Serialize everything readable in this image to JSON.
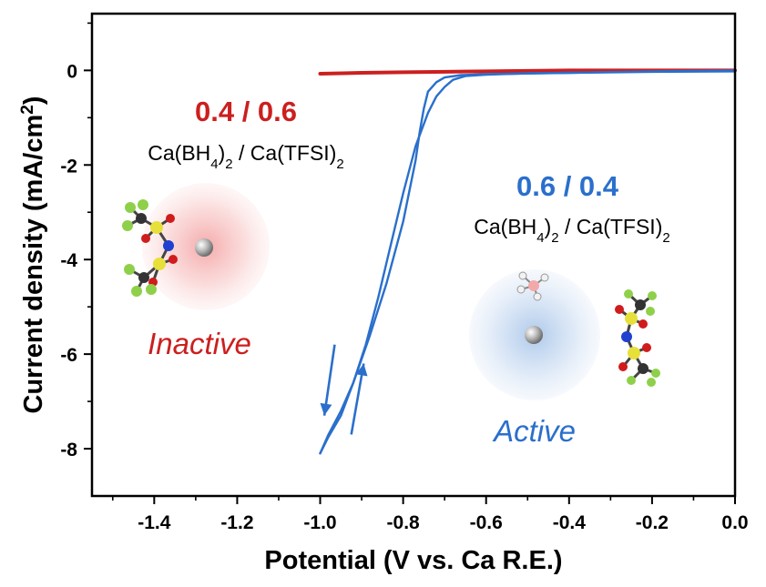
{
  "chart_data": {
    "type": "line",
    "xlabel": "Potential (V vs. Ca R.E.)",
    "ylabel_main": "Current density (mA/cm",
    "ylabel_sup": "2",
    "ylabel_close": ")",
    "xlim": [
      -1.55,
      0.0
    ],
    "ylim": [
      -9.0,
      1.2
    ],
    "xticks": [
      -1.4,
      -1.2,
      -1.0,
      -0.8,
      -0.6,
      -0.4,
      -0.2,
      0.0
    ],
    "xtick_labels": [
      "-1.4",
      "-1.2",
      "-1.0",
      "-0.8",
      "-0.6",
      "-0.4",
      "-0.2",
      "0.0"
    ],
    "yticks": [
      0,
      -2,
      -4,
      -6,
      -8
    ],
    "ytick_labels": [
      "0",
      "-2",
      "-4",
      "-6",
      "-8"
    ],
    "grid": false,
    "colors": {
      "red": "#cc1f1f",
      "blue": "#2a6fcc"
    },
    "series": [
      {
        "color": "#cc1f1f",
        "x": [
          -1.0,
          -0.9,
          -0.8,
          -0.7,
          -0.6,
          -0.5,
          -0.4,
          -0.3,
          -0.2,
          -0.1,
          0.0
        ],
        "y": [
          -0.07,
          -0.05,
          -0.04,
          -0.03,
          -0.02,
          -0.01,
          0.0,
          0.0,
          0.0,
          0.0,
          0.0
        ]
      },
      {
        "color": "#2a6fcc",
        "x": [
          0.0,
          -0.2,
          -0.4,
          -0.6,
          -0.66,
          -0.7,
          -0.72,
          -0.74,
          -0.75,
          -0.76,
          -0.77,
          -0.8,
          -0.84,
          -0.88,
          -0.92,
          -0.95,
          -0.98,
          -1.0
        ],
        "y": [
          0.0,
          -0.02,
          -0.05,
          -0.08,
          -0.1,
          -0.15,
          -0.25,
          -0.45,
          -0.8,
          -1.3,
          -1.9,
          -3.2,
          -4.5,
          -5.6,
          -6.6,
          -7.2,
          -7.7,
          -8.1
        ]
      },
      {
        "color": "#2a6fcc",
        "x": [
          -1.0,
          -0.98,
          -0.95,
          -0.92,
          -0.89,
          -0.86,
          -0.83,
          -0.8,
          -0.77,
          -0.74,
          -0.72,
          -0.7,
          -0.68,
          -0.65,
          -0.6,
          -0.5,
          -0.4,
          -0.2,
          0.0
        ],
        "y": [
          -8.1,
          -7.75,
          -7.3,
          -6.6,
          -5.8,
          -4.8,
          -3.7,
          -2.6,
          -1.6,
          -0.9,
          -0.55,
          -0.35,
          -0.2,
          -0.12,
          -0.09,
          -0.06,
          -0.05,
          -0.03,
          -0.02
        ]
      }
    ],
    "arrows": [
      {
        "from": [
          -0.965,
          -5.8
        ],
        "to": [
          -0.99,
          -7.3
        ],
        "color": "#2a6fcc"
      },
      {
        "from": [
          -0.925,
          -7.7
        ],
        "to": [
          -0.895,
          -6.2
        ],
        "color": "#2a6fcc"
      }
    ],
    "annotations": {
      "inactive_ratio": "0.4 / 0.6",
      "inactive_formula": "Ca(BH4)2 / Ca(TFSI)2",
      "inactive_label": "Inactive",
      "active_ratio": "0.6 / 0.4",
      "active_formula": "Ca(BH4)2 / Ca(TFSI)2",
      "active_label": "Active"
    },
    "formula_parts": [
      "Ca(BH",
      "4",
      ")",
      "2",
      " / Ca(TFSI)",
      "2"
    ]
  }
}
